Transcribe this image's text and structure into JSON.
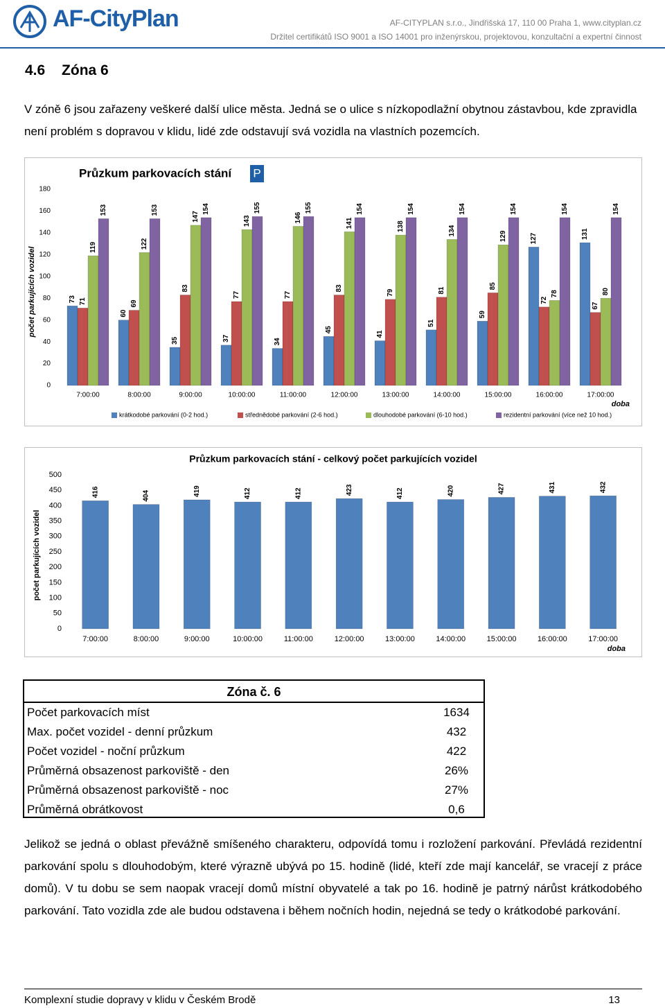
{
  "header": {
    "logo": "AF-CityPlan",
    "address": "AF-CITYPLAN s.r.o., Jindřišská 17, 110 00 Praha 1, www.cityplan.cz",
    "certificate": "Držitel certifikátů ISO 9001 a ISO 14001 pro inženýrskou, projektovou, konzultační a expertní činnost"
  },
  "section": {
    "number": "4.6",
    "title": "Zóna 6"
  },
  "intro": "V zóně 6 jsou zařazeny veškeré další ulice města. Jedná se o ulice s nízkopodlažní obytnou zástavbou, kde zpravidla není problém s dopravou v klidu, lidé zde odstavují svá vozidla na vlastních pozemcích.",
  "chart_data": [
    {
      "type": "grouped-bar",
      "title": "Průzkum parkovacích stání",
      "badge": "P",
      "y_label": "počet parkujících vozidel",
      "x_label": "doba",
      "categories": [
        "7:00:00",
        "8:00:00",
        "9:00:00",
        "10:00:00",
        "11:00:00",
        "12:00:00",
        "13:00:00",
        "14:00:00",
        "15:00:00",
        "16:00:00",
        "17:00:00"
      ],
      "series": [
        {
          "name": "krátkodobé parkování (0-2 hod.)",
          "color": "#4f81bd",
          "values": [
            73,
            60,
            35,
            37,
            34,
            45,
            41,
            51,
            59,
            127,
            131
          ]
        },
        {
          "name": "střednědobé parkování (2-6 hod.)",
          "color": "#c0504d",
          "values": [
            71,
            69,
            83,
            77,
            77,
            83,
            79,
            81,
            85,
            72,
            67
          ]
        },
        {
          "name": "dlouhodobé parkování (6-10 hod.)",
          "color": "#9bbb59",
          "values": [
            119,
            122,
            147,
            143,
            146,
            141,
            138,
            134,
            129,
            78,
            80
          ]
        },
        {
          "name": "rezidentní parkování (více než 10 hod.)",
          "color": "#8064a2",
          "values": [
            153,
            153,
            154,
            155,
            155,
            154,
            154,
            154,
            154,
            154,
            154
          ]
        }
      ],
      "ylim": [
        0,
        180
      ],
      "yticks": [
        0,
        20,
        40,
        60,
        80,
        100,
        120,
        140,
        160,
        180
      ],
      "legend": "bottom"
    },
    {
      "type": "bar",
      "title": "Průzkum parkovacích stání - celkový počet parkujících vozidel",
      "y_label": "počet parkujících vozidel",
      "x_label": "doba",
      "categories": [
        "7:00:00",
        "8:00:00",
        "9:00:00",
        "10:00:00",
        "11:00:00",
        "12:00:00",
        "13:00:00",
        "14:00:00",
        "15:00:00",
        "16:00:00",
        "17:00:00"
      ],
      "values": [
        416,
        404,
        419,
        412,
        412,
        423,
        412,
        420,
        427,
        431,
        432
      ],
      "color": "#4f81bd",
      "ylim": [
        0,
        500
      ],
      "yticks": [
        0,
        50,
        100,
        150,
        200,
        250,
        300,
        350,
        400,
        450,
        500
      ]
    }
  ],
  "table": {
    "title": "Zóna č. 6",
    "rows": [
      [
        "Počet parkovacích míst",
        "1634"
      ],
      [
        "Max. počet vozidel - denní průzkum",
        "432"
      ],
      [
        "Počet vozidel - noční průzkum",
        "422"
      ],
      [
        "Průměrná obsazenost parkoviště - den",
        "26%"
      ],
      [
        "Průměrná obsazenost parkoviště - noc",
        "27%"
      ],
      [
        "Průměrná obrátkovost",
        "0,6"
      ]
    ]
  },
  "conclusion": "Jelikož se jedná o oblast převážně smíšeného charakteru, odpovídá tomu i rozložení parkování. Převládá rezidentní parkování spolu s dlouhodobým, které výrazně ubývá po 15. hodině (lidé, kteří zde mají kancelář, se vracejí z práce domů). V tu dobu se sem naopak vracejí domů místní obyvatelé a tak po 16. hodině je patrný nárůst krátkodobého parkování. Tato vozidla zde ale budou odstavena i během nočních hodin, nejedná se tedy o krátkodobé parkování.",
  "footer": {
    "text": "Komplexní studie dopravy v klidu v Českém Brodě",
    "page": "13"
  }
}
